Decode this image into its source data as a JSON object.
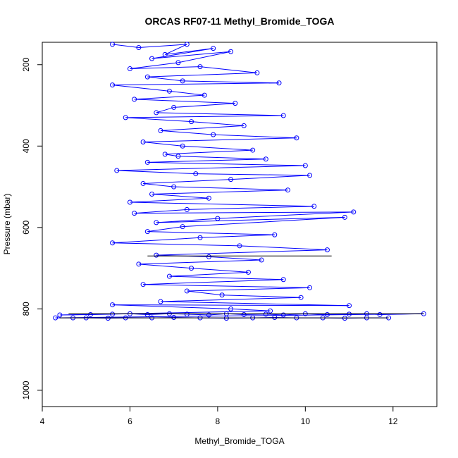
{
  "chart_data": {
    "type": "scatter",
    "title": "ORCAS RF07-11 Methyl_Bromide_TOGA",
    "xlabel": "Methyl_Bromide_TOGA",
    "ylabel": "Pressure (mbar)",
    "xlim": [
      4,
      13
    ],
    "ylim": [
      1040,
      145
    ],
    "y_reversed": true,
    "x_ticks": [
      4,
      6,
      8,
      10,
      12
    ],
    "y_ticks": [
      200,
      400,
      600,
      800,
      1000
    ],
    "grid": false,
    "legend": "none",
    "colors": {
      "series": "#0000ff",
      "reference_line": "#000000"
    },
    "series": [
      {
        "style": "points-and-lines",
        "points": [
          [
            5.6,
            150
          ],
          [
            6.2,
            158
          ],
          [
            7.3,
            150
          ],
          [
            6.8,
            175
          ],
          [
            7.9,
            160
          ],
          [
            6.5,
            185
          ],
          [
            8.3,
            168
          ],
          [
            7.1,
            195
          ],
          [
            6.0,
            210
          ],
          [
            7.6,
            205
          ],
          [
            8.9,
            220
          ],
          [
            6.4,
            230
          ],
          [
            7.2,
            240
          ],
          [
            9.4,
            245
          ],
          [
            5.6,
            250
          ],
          [
            6.9,
            265
          ],
          [
            7.7,
            275
          ],
          [
            6.1,
            285
          ],
          [
            8.4,
            295
          ],
          [
            7.0,
            305
          ],
          [
            6.6,
            318
          ],
          [
            9.5,
            325
          ],
          [
            5.9,
            330
          ],
          [
            7.4,
            340
          ],
          [
            8.6,
            350
          ],
          [
            6.7,
            362
          ],
          [
            7.9,
            372
          ],
          [
            9.8,
            380
          ],
          [
            6.3,
            390
          ],
          [
            7.2,
            400
          ],
          [
            8.8,
            410
          ],
          [
            6.8,
            420
          ],
          [
            7.1,
            425
          ],
          [
            9.1,
            432
          ],
          [
            6.4,
            440
          ],
          [
            10.0,
            448
          ],
          [
            5.7,
            460
          ],
          [
            7.5,
            468
          ],
          [
            10.1,
            472
          ],
          [
            8.3,
            482
          ],
          [
            6.3,
            492
          ],
          [
            7.0,
            500
          ],
          [
            9.6,
            508
          ],
          [
            6.5,
            518
          ],
          [
            7.8,
            528
          ],
          [
            6.0,
            538
          ],
          [
            10.2,
            548
          ],
          [
            7.3,
            556
          ],
          [
            6.1,
            565
          ],
          [
            11.1,
            562
          ],
          [
            8.0,
            578
          ],
          [
            6.6,
            588
          ],
          [
            10.9,
            575
          ],
          [
            7.2,
            598
          ],
          [
            6.4,
            610
          ],
          [
            9.3,
            618
          ],
          [
            7.6,
            625
          ],
          [
            5.6,
            638
          ],
          [
            8.5,
            645
          ],
          [
            10.5,
            655
          ],
          [
            6.6,
            668
          ],
          [
            7.8,
            672
          ],
          [
            9.0,
            680
          ],
          [
            6.2,
            690
          ],
          [
            7.4,
            700
          ],
          [
            8.7,
            710
          ],
          [
            6.9,
            720
          ],
          [
            9.5,
            728
          ],
          [
            6.3,
            740
          ],
          [
            10.1,
            748
          ],
          [
            7.3,
            756
          ],
          [
            8.1,
            766
          ],
          [
            9.9,
            772
          ],
          [
            6.7,
            782
          ],
          [
            11.0,
            792
          ],
          [
            5.6,
            790
          ],
          [
            8.3,
            800
          ],
          [
            9.2,
            805
          ],
          [
            4.4,
            815
          ],
          [
            5.1,
            814
          ],
          [
            5.6,
            813
          ],
          [
            6.0,
            812
          ],
          [
            6.4,
            814
          ],
          [
            6.9,
            812
          ],
          [
            7.3,
            813
          ],
          [
            7.8,
            815
          ],
          [
            8.2,
            812
          ],
          [
            8.6,
            814
          ],
          [
            9.1,
            813
          ],
          [
            9.5,
            815
          ],
          [
            10.0,
            812
          ],
          [
            10.5,
            814
          ],
          [
            11.0,
            813
          ],
          [
            11.4,
            812
          ],
          [
            11.7,
            814
          ],
          [
            12.7,
            812
          ],
          [
            4.3,
            822
          ],
          [
            4.7,
            822
          ],
          [
            5.0,
            822
          ],
          [
            5.5,
            823
          ],
          [
            5.9,
            822
          ],
          [
            6.5,
            822
          ],
          [
            7.0,
            821
          ],
          [
            7.6,
            822
          ],
          [
            8.2,
            823
          ],
          [
            8.8,
            822
          ],
          [
            9.3,
            821
          ],
          [
            9.8,
            822
          ],
          [
            10.4,
            822
          ],
          [
            10.9,
            823
          ],
          [
            11.4,
            822
          ],
          [
            11.9,
            822
          ]
        ]
      }
    ],
    "reference_lines": [
      {
        "x": [
          4.6,
          12.7
        ],
        "y": 812
      },
      {
        "x": [
          4.4,
          11.9
        ],
        "y": 822
      },
      {
        "x": [
          6.4,
          10.6
        ],
        "y": 670
      }
    ]
  }
}
